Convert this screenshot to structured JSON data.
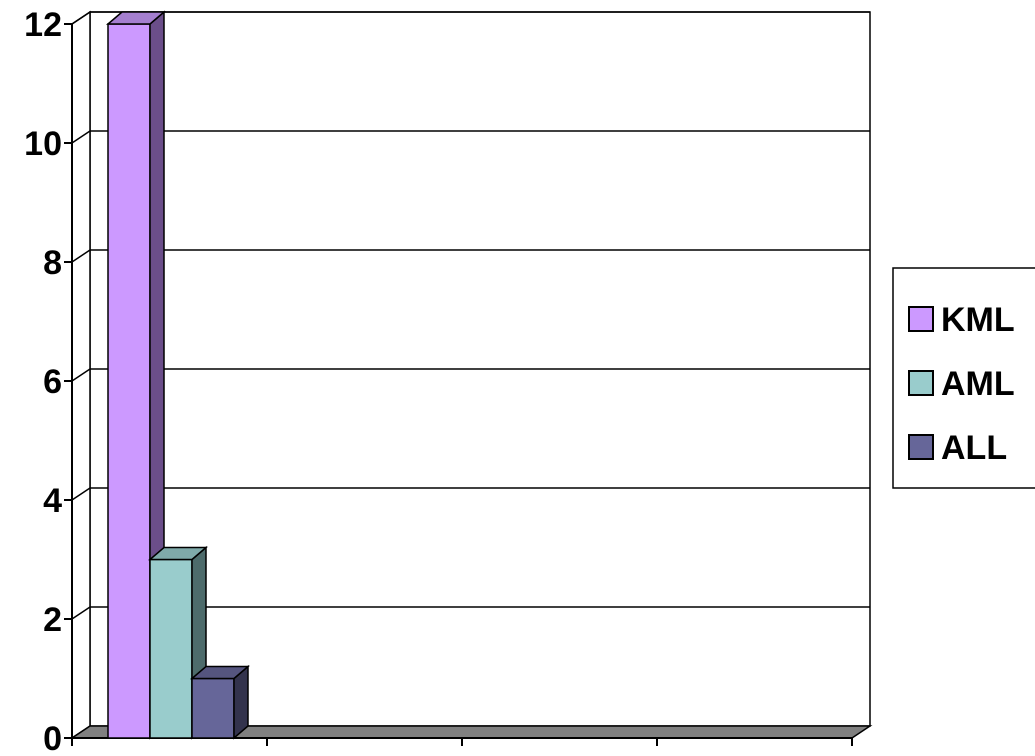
{
  "chart_data": {
    "type": "bar",
    "style": "3d-column",
    "categories": [
      ""
    ],
    "series": [
      {
        "name": "KML",
        "values": [
          12
        ],
        "color": "#cc99ff",
        "side_color": "#6b4e8a",
        "top_color": "#a57fd0"
      },
      {
        "name": "AML",
        "values": [
          3
        ],
        "color": "#99cccc",
        "side_color": "#4d6b6b",
        "top_color": "#7faaaa"
      },
      {
        "name": "ALL",
        "values": [
          1
        ],
        "color": "#666699",
        "side_color": "#33334d",
        "top_color": "#55557f"
      }
    ],
    "title": "",
    "xlabel": "",
    "ylabel": "",
    "ylim": [
      0,
      12
    ],
    "yticks": [
      "0",
      "2",
      "4",
      "6",
      "8",
      "10",
      "12"
    ],
    "grid": true,
    "legend_position": "right",
    "floor_color": "#808080"
  }
}
